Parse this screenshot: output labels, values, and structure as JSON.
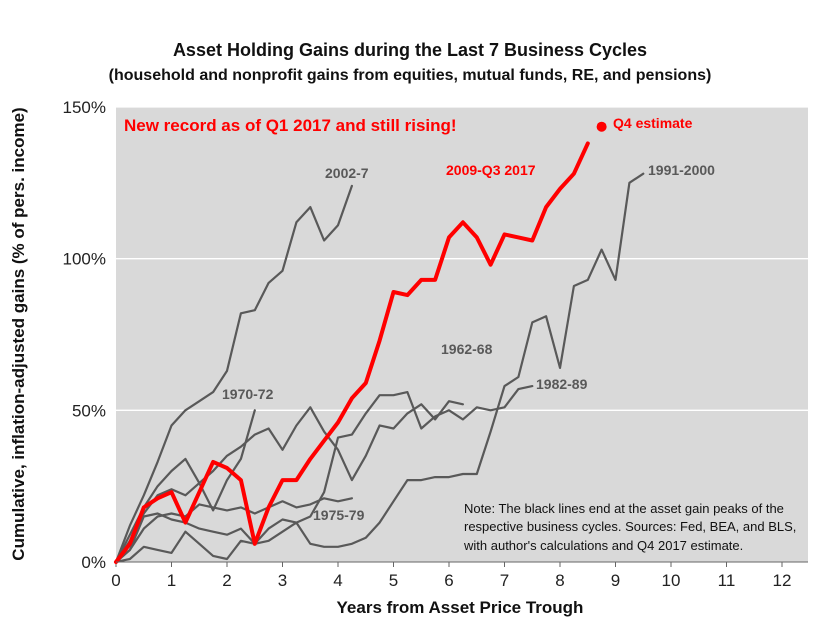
{
  "chart_data": {
    "type": "line",
    "title": "Asset Holding Gains during the Last 7 Business Cycles",
    "subtitle": "(household and nonprofit gains from equities, mutual funds, RE, and pensions)",
    "xlabel": "Years from Asset Price Trough",
    "ylabel": "Cumulative, inflation-adjusted gains (% of pers. income)",
    "xlim": [
      0,
      12.5
    ],
    "ylim": [
      0,
      150
    ],
    "x_ticks": [
      0,
      1,
      2,
      3,
      4,
      5,
      6,
      7,
      8,
      9,
      10,
      11,
      12
    ],
    "y_ticks": [
      0,
      50,
      100,
      150
    ],
    "y_tick_labels": [
      "0%",
      "50%",
      "100%",
      "150%"
    ],
    "grid": true,
    "colors": {
      "plot_bg": "#d9d9d9",
      "grid": "#ffffff",
      "history": "#595959",
      "current": "#ff0000"
    },
    "annotations": {
      "headline": "New record as of Q1 2017 and still rising!",
      "note_lines": [
        "Note: The black lines end at the asset gain peaks of the",
        "respective business cycles. Sources: Fed, BEA, and BLS,",
        "with author's calculations and Q4 2017 estimate."
      ]
    },
    "estimate_point": {
      "label": "Q4 estimate",
      "x": 8.75,
      "y": 143.5
    },
    "series": [
      {
        "name": "2002-7",
        "color": "#595959",
        "x": [
          0,
          0.25,
          0.5,
          0.75,
          1,
          1.25,
          1.5,
          1.75,
          2,
          2.25,
          2.5,
          2.75,
          3,
          3.25,
          3.5,
          3.75,
          4,
          4.25
        ],
        "y": [
          0,
          12,
          22,
          33,
          45,
          50,
          53,
          56,
          63,
          82,
          83,
          92,
          96,
          112,
          117,
          106,
          111,
          124
        ]
      },
      {
        "name": "1970-72",
        "color": "#595959",
        "x": [
          0,
          0.25,
          0.5,
          0.75,
          1,
          1.25,
          1.5,
          1.75,
          2,
          2.25,
          2.5
        ],
        "y": [
          0,
          9,
          18,
          25,
          30,
          34,
          26,
          17,
          27,
          34,
          50
        ]
      },
      {
        "name": "1975-79",
        "color": "#595959",
        "x": [
          0,
          0.25,
          0.5,
          0.75,
          1,
          1.25,
          1.5,
          1.75,
          2,
          2.25,
          2.5,
          2.75,
          3,
          3.25,
          3.5,
          3.75,
          4,
          4.25
        ],
        "y": [
          0,
          4,
          11,
          15,
          16,
          15,
          19,
          18,
          17,
          18,
          16,
          18,
          20,
          18,
          19,
          21,
          20,
          21
        ]
      },
      {
        "name": "1962-68",
        "color": "#595959",
        "x": [
          0,
          0.25,
          0.5,
          0.75,
          1,
          1.25,
          1.5,
          1.75,
          2,
          2.25,
          2.5,
          2.75,
          3,
          3.25,
          3.5,
          3.75,
          4,
          4.25,
          4.5,
          4.75,
          5,
          5.25,
          5.5,
          5.75,
          6,
          6.25
        ],
        "y": [
          0,
          7,
          16,
          22,
          24,
          22,
          26,
          30,
          35,
          38,
          42,
          44,
          37,
          45,
          51,
          43,
          37,
          27,
          35,
          45,
          44,
          49,
          52,
          47,
          53,
          52
        ]
      },
      {
        "name": "1982-89",
        "color": "#595959",
        "x": [
          0,
          0.25,
          0.5,
          0.75,
          1,
          1.25,
          1.5,
          1.75,
          2,
          2.25,
          2.5,
          2.75,
          3,
          3.25,
          3.5,
          3.75,
          4,
          4.25,
          4.5,
          4.75,
          5,
          5.25,
          5.5,
          5.75,
          6,
          6.25,
          6.5,
          6.75,
          7,
          7.25,
          7.5
        ],
        "y": [
          0,
          4,
          15,
          16,
          14,
          13,
          11,
          10,
          9,
          11,
          6,
          11,
          14,
          13,
          15,
          23,
          41,
          42,
          49,
          55,
          55,
          56,
          44,
          48,
          50,
          47,
          51,
          50,
          51,
          57,
          58
        ]
      },
      {
        "name": "1991-2000",
        "color": "#595959",
        "x": [
          0,
          0.25,
          0.5,
          0.75,
          1,
          1.25,
          1.5,
          1.75,
          2,
          2.25,
          2.5,
          2.75,
          3,
          3.25,
          3.5,
          3.75,
          4,
          4.25,
          4.5,
          4.75,
          5,
          5.25,
          5.5,
          5.75,
          6,
          6.25,
          6.5,
          6.75,
          7,
          7.25,
          7.5,
          7.75,
          8,
          8.25,
          8.5,
          8.75,
          9,
          9.25,
          9.5
        ],
        "y": [
          0,
          1,
          5,
          4,
          3,
          10,
          6,
          2,
          1,
          7,
          6,
          7,
          10,
          13,
          6,
          5,
          5,
          6,
          8,
          13,
          20,
          27,
          27,
          28,
          28,
          29,
          29,
          43,
          58,
          61,
          79,
          81,
          64,
          91,
          93,
          103,
          93,
          125,
          128
        ]
      },
      {
        "name": "2009-Q3 2017",
        "color": "#ff0000",
        "x": [
          0,
          0.25,
          0.5,
          0.75,
          1,
          1.25,
          1.5,
          1.75,
          2,
          2.25,
          2.5,
          2.75,
          3,
          3.25,
          3.5,
          3.75,
          4,
          4.25,
          4.5,
          4.75,
          5,
          5.25,
          5.5,
          5.75,
          6,
          6.25,
          6.5,
          6.75,
          7,
          7.25,
          7.5,
          7.75,
          8,
          8.25,
          8.5
        ],
        "y": [
          0,
          6,
          18,
          21,
          23,
          13,
          23,
          33,
          31,
          27,
          6,
          18,
          27,
          27,
          34,
          40,
          46,
          54,
          59,
          73,
          89,
          88,
          93,
          93,
          107,
          112,
          107,
          98,
          108,
          107,
          106,
          117,
          123,
          128,
          138
        ]
      }
    ],
    "series_label_text": [
      "2002-7",
      "1970-72",
      "1975-79",
      "1962-68",
      "1982-89",
      "1991-2000",
      "2009-Q3 2017"
    ]
  }
}
